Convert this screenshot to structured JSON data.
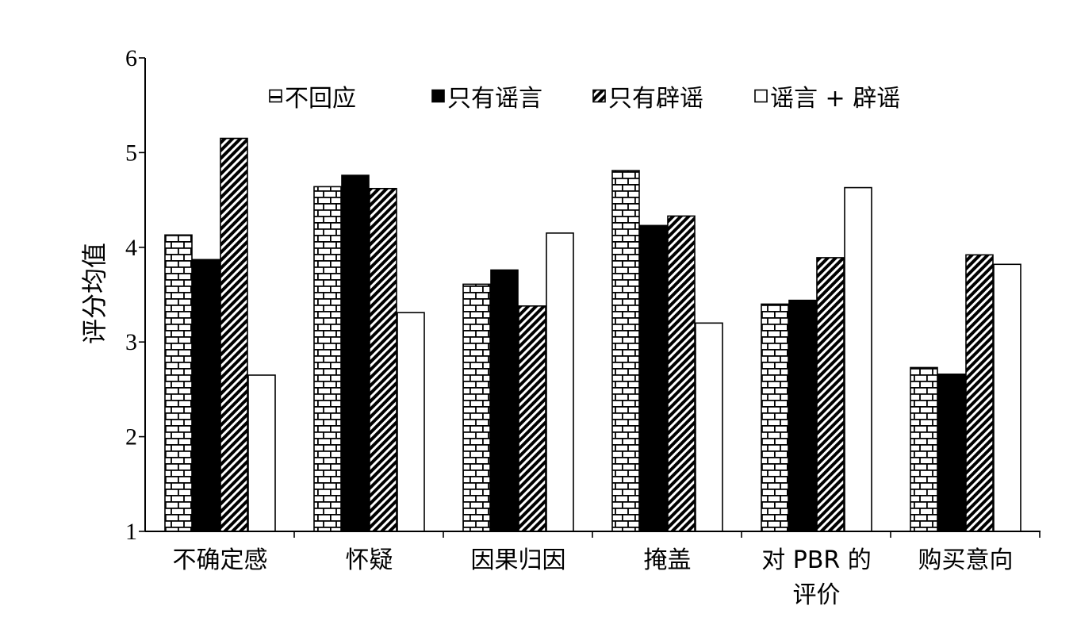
{
  "chart_data": {
    "type": "bar",
    "categories": [
      "不确定感",
      "怀疑",
      "因果归因",
      "掩盖",
      "对 PBR 的\n评价",
      "购买意向"
    ],
    "series": [
      {
        "name": "不回应",
        "values": [
          4.13,
          4.64,
          3.61,
          4.81,
          3.4,
          2.73
        ],
        "pattern": "brick"
      },
      {
        "name": "只有谣言",
        "values": [
          3.87,
          4.76,
          3.76,
          4.23,
          3.44,
          2.66
        ],
        "pattern": "solid"
      },
      {
        "name": "只有辟谣",
        "values": [
          5.15,
          4.62,
          3.38,
          4.33,
          3.89,
          3.92
        ],
        "pattern": "hatch"
      },
      {
        "name": "谣言 + 辟谣",
        "values": [
          2.65,
          3.31,
          4.15,
          3.2,
          4.63,
          3.82
        ],
        "pattern": "white"
      }
    ],
    "ylabel": "评分均值",
    "xlabel": "",
    "ylim": [
      1,
      6
    ],
    "yticks": [
      "1",
      "2",
      "3",
      "4",
      "5",
      "6"
    ],
    "grid": false,
    "legend": "top",
    "colors": {
      "ink": "#000000",
      "paper": "#ffffff"
    }
  }
}
